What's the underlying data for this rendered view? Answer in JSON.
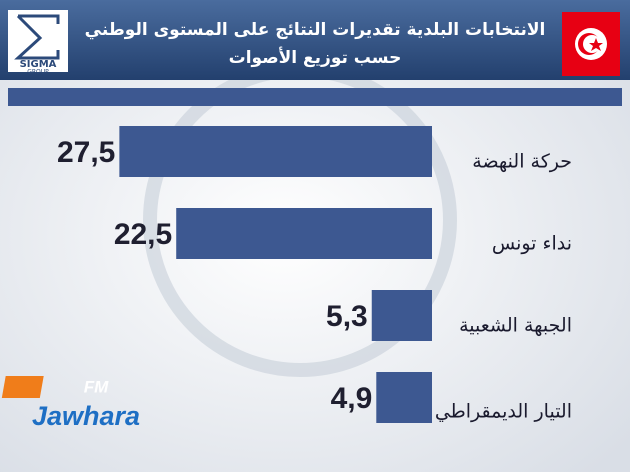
{
  "chart_data": {
    "type": "bar",
    "orientation": "horizontal",
    "title": "الانتخابات البلدية تقديرات النتائج على المستوى الوطني",
    "subtitle": "حسب توزيع الأصوات",
    "categories": [
      "حركة النهضة",
      "نداء تونس",
      "الجبهة الشعبية",
      "التيار الديمقراطي"
    ],
    "values": [
      27.5,
      22.5,
      5.3,
      4.9
    ],
    "value_labels": [
      "27,5",
      "22,5",
      "5,3",
      "4,9"
    ],
    "color": "#3d5891",
    "xlim": [
      0,
      38
    ]
  },
  "branding": {
    "sigma": "SIGMA",
    "sigma_sub": "GROUP",
    "fm": "FM",
    "station": "Jawhara"
  }
}
